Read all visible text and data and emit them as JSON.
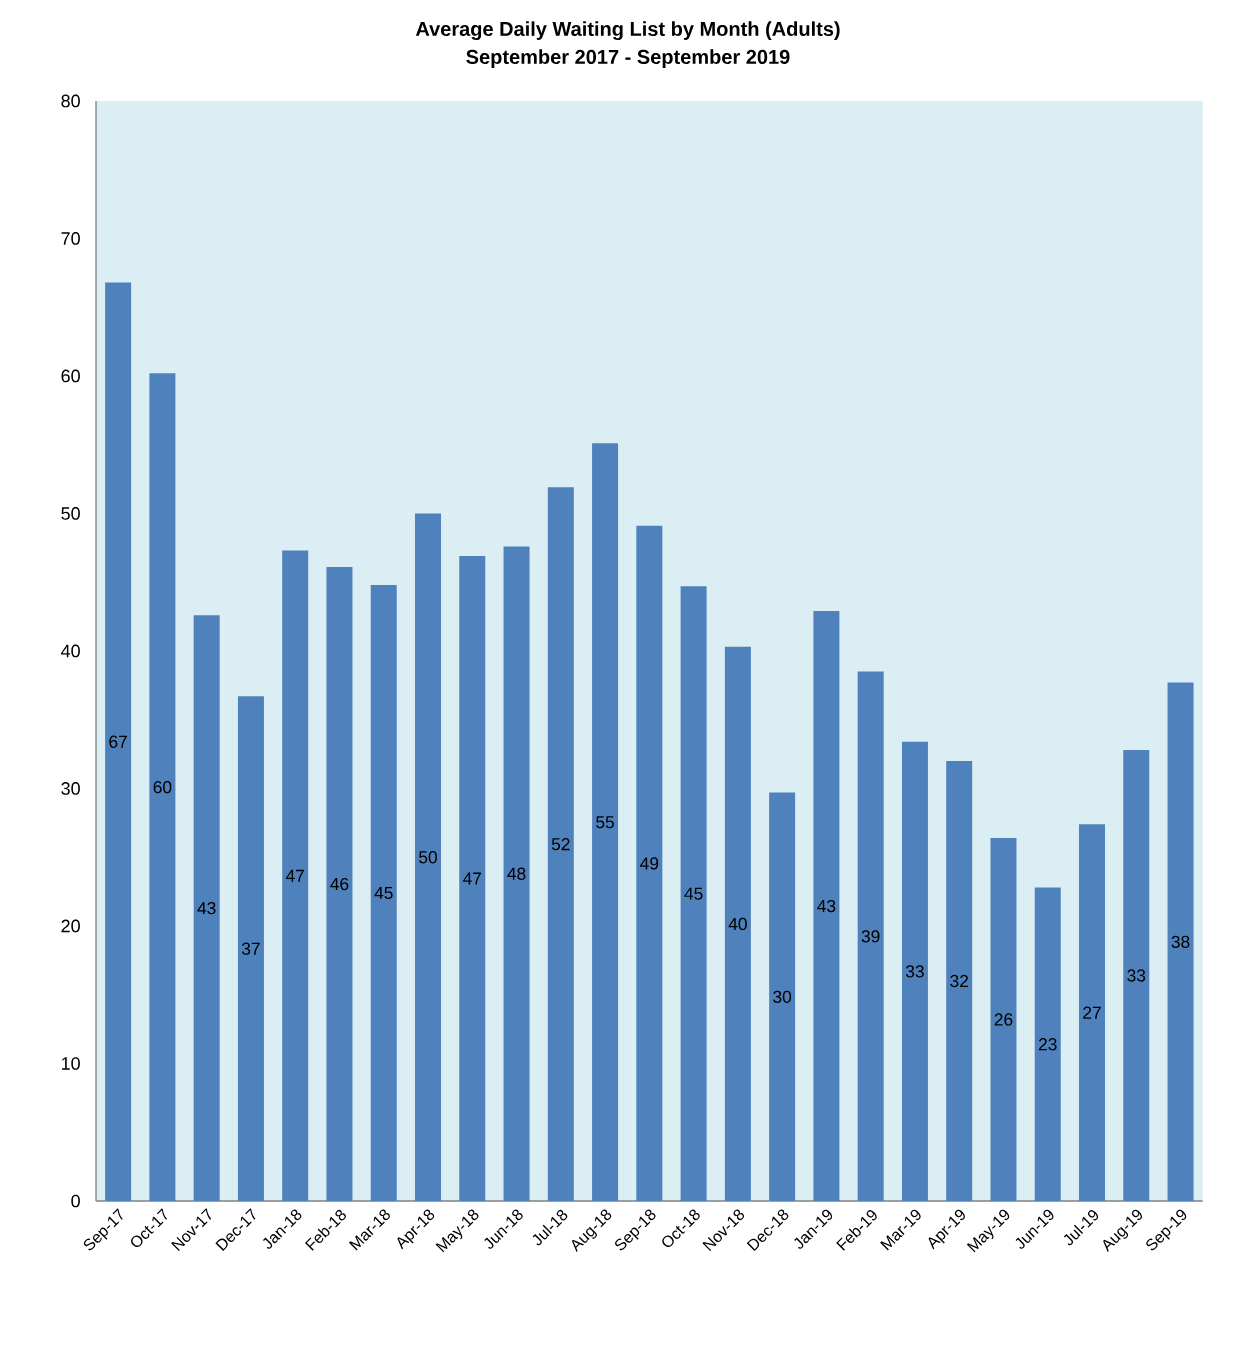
{
  "chart_data": {
    "type": "bar",
    "title": "Average Daily Waiting List by Month (Adults)",
    "subtitle": "September 2017 - September 2019",
    "categories": [
      "Sep-17",
      "Oct-17",
      "Nov-17",
      "Dec-17",
      "Jan-18",
      "Feb-18",
      "Mar-18",
      "Apr-18",
      "May-18",
      "Jun-18",
      "Jul-18",
      "Aug-18",
      "Sep-18",
      "Oct-18",
      "Nov-18",
      "Dec-18",
      "Jan-19",
      "Feb-19",
      "Mar-19",
      "Apr-19",
      "May-19",
      "Jun-19",
      "Jul-19",
      "Aug-19",
      "Sep-19"
    ],
    "values": [
      66.8,
      60.2,
      42.6,
      36.7,
      47.3,
      46.1,
      44.8,
      50.0,
      46.9,
      47.6,
      51.9,
      55.1,
      49.1,
      44.7,
      40.3,
      29.7,
      42.9,
      38.5,
      33.4,
      32.0,
      26.4,
      22.8,
      27.4,
      32.8,
      37.7
    ],
    "value_labels": [
      "67",
      "60",
      "43",
      "37",
      "47",
      "46",
      "45",
      "50",
      "47",
      "48",
      "52",
      "55",
      "49",
      "45",
      "40",
      "30",
      "43",
      "39",
      "33",
      "32",
      "26",
      "23",
      "27",
      "33",
      "38"
    ],
    "color": "#4f81bd",
    "ylim": [
      0,
      80
    ],
    "yticks": [
      0,
      10,
      20,
      30,
      40,
      50,
      60,
      70,
      80
    ],
    "grid": false
  }
}
